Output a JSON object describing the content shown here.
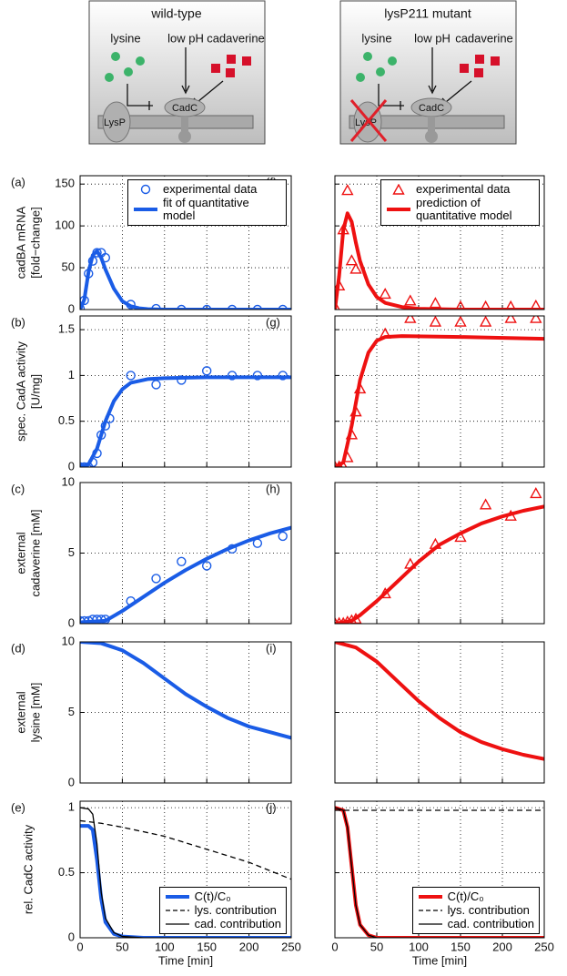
{
  "diagrams": [
    {
      "title": "wild-type",
      "labels": {
        "lysine": "lysine",
        "ph": "low pH",
        "cadaverine": "cadaverine",
        "lysp": "LysP",
        "cadc": "CadC"
      }
    },
    {
      "title": "lysP211 mutant",
      "labels": {
        "lysine": "lysine",
        "ph": "low pH",
        "cadaverine": "cadaverine",
        "lysp": "LysP",
        "cadc": "CadC"
      }
    }
  ],
  "chart_data": [
    {
      "type": "line",
      "panel": "(a)",
      "ylabel": [
        "cadBA mRNA",
        "[fold−change]"
      ],
      "xlim": [
        0,
        250
      ],
      "xticks": [
        0,
        50,
        100,
        150,
        200,
        250
      ],
      "ylim": [
        0,
        160
      ],
      "yticks": [
        0,
        50,
        100,
        150
      ],
      "grid": true,
      "legend": "upper right",
      "series": [
        {
          "name": "experimental data",
          "color": "#1a5ce6",
          "marker": "circle",
          "x": [
            0,
            5,
            10,
            15,
            20,
            25,
            30,
            60,
            90,
            120,
            150,
            180,
            210,
            240
          ],
          "values": [
            1,
            11,
            43,
            58,
            68,
            68,
            62,
            6,
            1,
            0,
            0,
            0,
            0,
            0
          ]
        },
        {
          "name": "fit of quantitative model",
          "color": "#1a5ce6",
          "linewidth": 4,
          "x": [
            0,
            5,
            10,
            15,
            20,
            25,
            30,
            40,
            50,
            60,
            70,
            80,
            100,
            150,
            200,
            250
          ],
          "values": [
            0,
            12,
            45,
            65,
            70,
            62,
            48,
            25,
            10,
            4,
            1.5,
            0.5,
            0,
            0,
            0,
            0
          ]
        }
      ]
    },
    {
      "type": "line",
      "panel": "(b)",
      "ylabel": [
        "spec. CadA activity",
        "[U/mg]"
      ],
      "xlim": [
        0,
        250
      ],
      "xticks": [
        0,
        50,
        100,
        150,
        200,
        250
      ],
      "ylim": [
        0,
        1.65
      ],
      "yticks": [
        0,
        0.5,
        1,
        1.5
      ],
      "grid": true,
      "series": [
        {
          "color": "#1a5ce6",
          "marker": "circle",
          "x": [
            0,
            5,
            10,
            15,
            20,
            25,
            30,
            35,
            60,
            90,
            120,
            150,
            180,
            210,
            240
          ],
          "values": [
            0,
            0,
            0,
            0.05,
            0.15,
            0.35,
            0.45,
            0.53,
            1,
            0.9,
            0.95,
            1.05,
            1,
            1,
            1
          ]
        },
        {
          "color": "#1a5ce6",
          "linewidth": 4,
          "x": [
            0,
            10,
            20,
            30,
            40,
            50,
            60,
            80,
            100,
            150,
            200,
            250
          ],
          "values": [
            0,
            0.03,
            0.2,
            0.5,
            0.72,
            0.85,
            0.92,
            0.96,
            0.97,
            0.98,
            0.98,
            0.98
          ]
        }
      ]
    },
    {
      "type": "line",
      "panel": "(c)",
      "ylabel": [
        "external",
        "cadaverine [mM]"
      ],
      "xlim": [
        0,
        250
      ],
      "xticks": [
        0,
        50,
        100,
        150,
        200,
        250
      ],
      "ylim": [
        0,
        10
      ],
      "yticks": [
        0,
        5,
        10
      ],
      "grid": true,
      "series": [
        {
          "color": "#1a5ce6",
          "marker": "circle",
          "x": [
            0,
            5,
            10,
            15,
            20,
            25,
            30,
            60,
            90,
            120,
            150,
            180,
            210,
            240
          ],
          "values": [
            0.2,
            0.2,
            0.2,
            0.3,
            0.3,
            0.3,
            0.3,
            1.6,
            3.2,
            4.4,
            4.1,
            5.3,
            5.7,
            6.2
          ]
        },
        {
          "color": "#1a5ce6",
          "linewidth": 4,
          "x": [
            0,
            30,
            50,
            75,
            100,
            125,
            150,
            175,
            200,
            225,
            250
          ],
          "values": [
            0.1,
            0.2,
            0.9,
            1.9,
            2.9,
            3.8,
            4.6,
            5.3,
            5.9,
            6.4,
            6.8
          ]
        }
      ]
    },
    {
      "type": "line",
      "panel": "(d)",
      "ylabel": [
        "external",
        "lysine [mM]"
      ],
      "xlim": [
        0,
        250
      ],
      "xticks": [
        0,
        50,
        100,
        150,
        200,
        250
      ],
      "ylim": [
        0,
        10
      ],
      "yticks": [
        0,
        5,
        10
      ],
      "grid": true,
      "series": [
        {
          "color": "#1a5ce6",
          "linewidth": 4,
          "x": [
            0,
            25,
            50,
            75,
            100,
            125,
            150,
            175,
            200,
            225,
            250
          ],
          "values": [
            10,
            9.9,
            9.4,
            8.5,
            7.4,
            6.3,
            5.4,
            4.6,
            4,
            3.6,
            3.2
          ]
        }
      ]
    },
    {
      "type": "line",
      "panel": "(e)",
      "ylabel": [
        "rel. CadC activity"
      ],
      "xlabel": "Time [min]",
      "xlim": [
        0,
        250
      ],
      "xticks": [
        0,
        50,
        100,
        150,
        200,
        250
      ],
      "ylim": [
        0,
        1.05
      ],
      "yticks": [
        0,
        0.5,
        1
      ],
      "grid": true,
      "legend": "lower right",
      "series": [
        {
          "name": "C(t)/C₀",
          "color": "#1a5ce6",
          "linewidth": 4,
          "x": [
            0,
            10,
            15,
            20,
            25,
            30,
            40,
            50,
            75,
            250
          ],
          "values": [
            0.86,
            0.86,
            0.83,
            0.6,
            0.3,
            0.12,
            0.03,
            0.01,
            0,
            0
          ]
        },
        {
          "name": "lys. contribution",
          "color": "#000000",
          "linewidth": 1.3,
          "linestyle": "dashed",
          "x": [
            0,
            25,
            50,
            100,
            150,
            200,
            250
          ],
          "values": [
            0.9,
            0.88,
            0.85,
            0.78,
            0.68,
            0.58,
            0.45
          ]
        },
        {
          "name": "cad. contribution",
          "color": "#000000",
          "linewidth": 1.3,
          "x": [
            0,
            10,
            15,
            20,
            25,
            30,
            40,
            50,
            75,
            250
          ],
          "values": [
            1,
            0.99,
            0.95,
            0.72,
            0.35,
            0.15,
            0.04,
            0.01,
            0,
            0
          ]
        }
      ]
    },
    {
      "type": "line",
      "panel": "(f)",
      "xlim": [
        0,
        250
      ],
      "xticks": [
        0,
        50,
        100,
        150,
        200,
        250
      ],
      "ylim": [
        0,
        160
      ],
      "yticks": [
        0,
        50,
        100,
        150
      ],
      "grid": true,
      "legend": "upper right",
      "series": [
        {
          "name": "experimental data",
          "color": "#ee1111",
          "marker": "triangle",
          "x": [
            0,
            5,
            10,
            15,
            20,
            25,
            60,
            90,
            120,
            150,
            180,
            210,
            240
          ],
          "values": [
            3,
            28,
            95,
            142,
            58,
            48,
            18,
            10,
            7,
            3,
            3,
            3,
            4
          ]
        },
        {
          "name": "prediction of quantitative model",
          "color": "#ee1111",
          "linewidth": 4,
          "x": [
            0,
            5,
            10,
            15,
            20,
            25,
            30,
            40,
            50,
            60,
            80,
            100,
            150,
            250
          ],
          "values": [
            0,
            40,
            95,
            115,
            105,
            80,
            58,
            30,
            15,
            8,
            3,
            1,
            0,
            0
          ]
        }
      ]
    },
    {
      "type": "line",
      "panel": "(g)",
      "xlim": [
        0,
        250
      ],
      "xticks": [
        0,
        50,
        100,
        150,
        200,
        250
      ],
      "ylim": [
        0,
        1.65
      ],
      "yticks": [
        0,
        0.5,
        1,
        1.5
      ],
      "grid": true,
      "series": [
        {
          "color": "#ee1111",
          "marker": "triangle",
          "x": [
            0,
            5,
            10,
            15,
            20,
            25,
            30,
            60,
            90,
            120,
            150,
            180,
            210,
            240
          ],
          "values": [
            0,
            0,
            0,
            0.1,
            0.35,
            0.6,
            0.85,
            1.45,
            1.62,
            1.58,
            1.58,
            1.58,
            1.62,
            1.62
          ]
        },
        {
          "color": "#ee1111",
          "linewidth": 4,
          "x": [
            0,
            10,
            20,
            30,
            40,
            50,
            60,
            80,
            150,
            250
          ],
          "values": [
            0,
            0.05,
            0.45,
            0.95,
            1.25,
            1.38,
            1.42,
            1.43,
            1.42,
            1.4
          ]
        }
      ]
    },
    {
      "type": "line",
      "panel": "(h)",
      "xlim": [
        0,
        250
      ],
      "xticks": [
        0,
        50,
        100,
        150,
        200,
        250
      ],
      "ylim": [
        0,
        10
      ],
      "yticks": [
        0,
        5,
        10
      ],
      "grid": true,
      "series": [
        {
          "color": "#ee1111",
          "marker": "triangle",
          "x": [
            0,
            5,
            10,
            15,
            20,
            25,
            60,
            90,
            120,
            150,
            180,
            210,
            240
          ],
          "values": [
            0,
            0,
            0,
            0.1,
            0.2,
            0.3,
            2.1,
            4.2,
            5.6,
            6.1,
            8.4,
            7.6,
            9.2
          ]
        },
        {
          "color": "#ee1111",
          "linewidth": 4,
          "x": [
            0,
            20,
            30,
            50,
            75,
            100,
            125,
            150,
            175,
            200,
            225,
            250
          ],
          "values": [
            0,
            0.2,
            0.6,
            1.6,
            3,
            4.4,
            5.6,
            6.4,
            7.1,
            7.6,
            8,
            8.3
          ]
        }
      ]
    },
    {
      "type": "line",
      "panel": "(i)",
      "xlim": [
        0,
        250
      ],
      "xticks": [
        0,
        50,
        100,
        150,
        200,
        250
      ],
      "ylim": [
        0,
        10
      ],
      "yticks": [
        0,
        5,
        10
      ],
      "grid": true,
      "series": [
        {
          "color": "#ee1111",
          "linewidth": 4,
          "x": [
            0,
            25,
            50,
            75,
            100,
            125,
            150,
            175,
            200,
            225,
            250
          ],
          "values": [
            10,
            9.6,
            8.6,
            7.2,
            5.8,
            4.6,
            3.6,
            2.9,
            2.4,
            2,
            1.7
          ]
        }
      ]
    },
    {
      "type": "line",
      "panel": "(j)",
      "xlabel": "Time [min]",
      "xlim": [
        0,
        250
      ],
      "xticks": [
        0,
        50,
        100,
        150,
        200,
        250
      ],
      "ylim": [
        0,
        1.05
      ],
      "yticks": [
        0,
        0.5,
        1
      ],
      "grid": true,
      "legend": "lower right",
      "series": [
        {
          "name": "C(t)/C₀",
          "color": "#ee1111",
          "linewidth": 4,
          "x": [
            0,
            10,
            15,
            20,
            25,
            30,
            40,
            50,
            250
          ],
          "values": [
            1,
            0.98,
            0.85,
            0.55,
            0.25,
            0.1,
            0.02,
            0,
            0
          ]
        },
        {
          "name": "lys. contribution",
          "color": "#000000",
          "linewidth": 1.3,
          "linestyle": "dashed",
          "x": [
            0,
            250
          ],
          "values": [
            0.98,
            0.98
          ]
        },
        {
          "name": "cad. contribution",
          "color": "#000000",
          "linewidth": 1.3,
          "x": [
            0,
            10,
            15,
            20,
            25,
            30,
            40,
            50,
            250
          ],
          "values": [
            1,
            0.98,
            0.85,
            0.55,
            0.25,
            0.1,
            0.02,
            0,
            0
          ]
        }
      ]
    }
  ]
}
